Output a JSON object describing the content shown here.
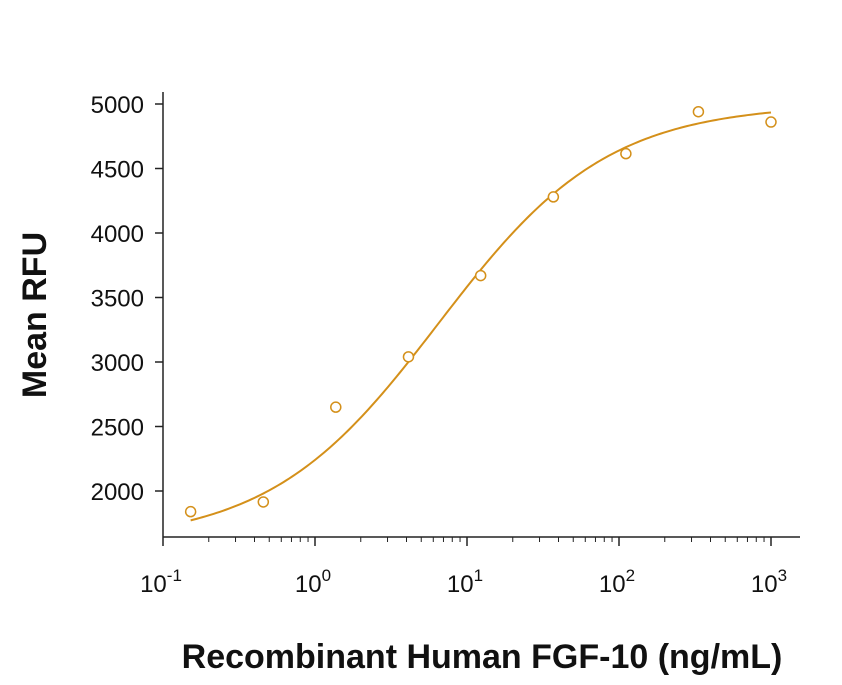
{
  "chart_data": {
    "type": "scatter",
    "title": "",
    "xlabel": "Recombinant Human FGF-10 (ng/mL)",
    "ylabel": "Mean RFU",
    "x_scale": "log",
    "xlim": [
      0.1,
      1000
    ],
    "ylim": [
      1650,
      5050
    ],
    "x_ticks": [
      {
        "value": 0.1,
        "base": "10",
        "exp": "-1"
      },
      {
        "value": 1,
        "base": "10",
        "exp": "0"
      },
      {
        "value": 10,
        "base": "10",
        "exp": "1"
      },
      {
        "value": 100,
        "base": "10",
        "exp": "2"
      },
      {
        "value": 1000,
        "base": "10",
        "exp": "3"
      }
    ],
    "y_ticks": [
      2000,
      2500,
      3000,
      3500,
      4000,
      4500,
      5000
    ],
    "grid": false,
    "legend": "none",
    "color": "#d4901a",
    "series": [
      {
        "marker": "open-circle",
        "x": [
          0.152,
          0.457,
          1.37,
          4.12,
          12.3,
          37.0,
          111,
          333,
          1000
        ],
        "y": [
          1840,
          1915,
          2650,
          3040,
          3670,
          4280,
          4615,
          4940,
          4860
        ]
      }
    ],
    "fit": {
      "type": "4PL",
      "bottom": 1600,
      "top": 5000,
      "ec50": 6.5,
      "hill": 0.78,
      "x_range": [
        0.152,
        1000
      ]
    }
  }
}
